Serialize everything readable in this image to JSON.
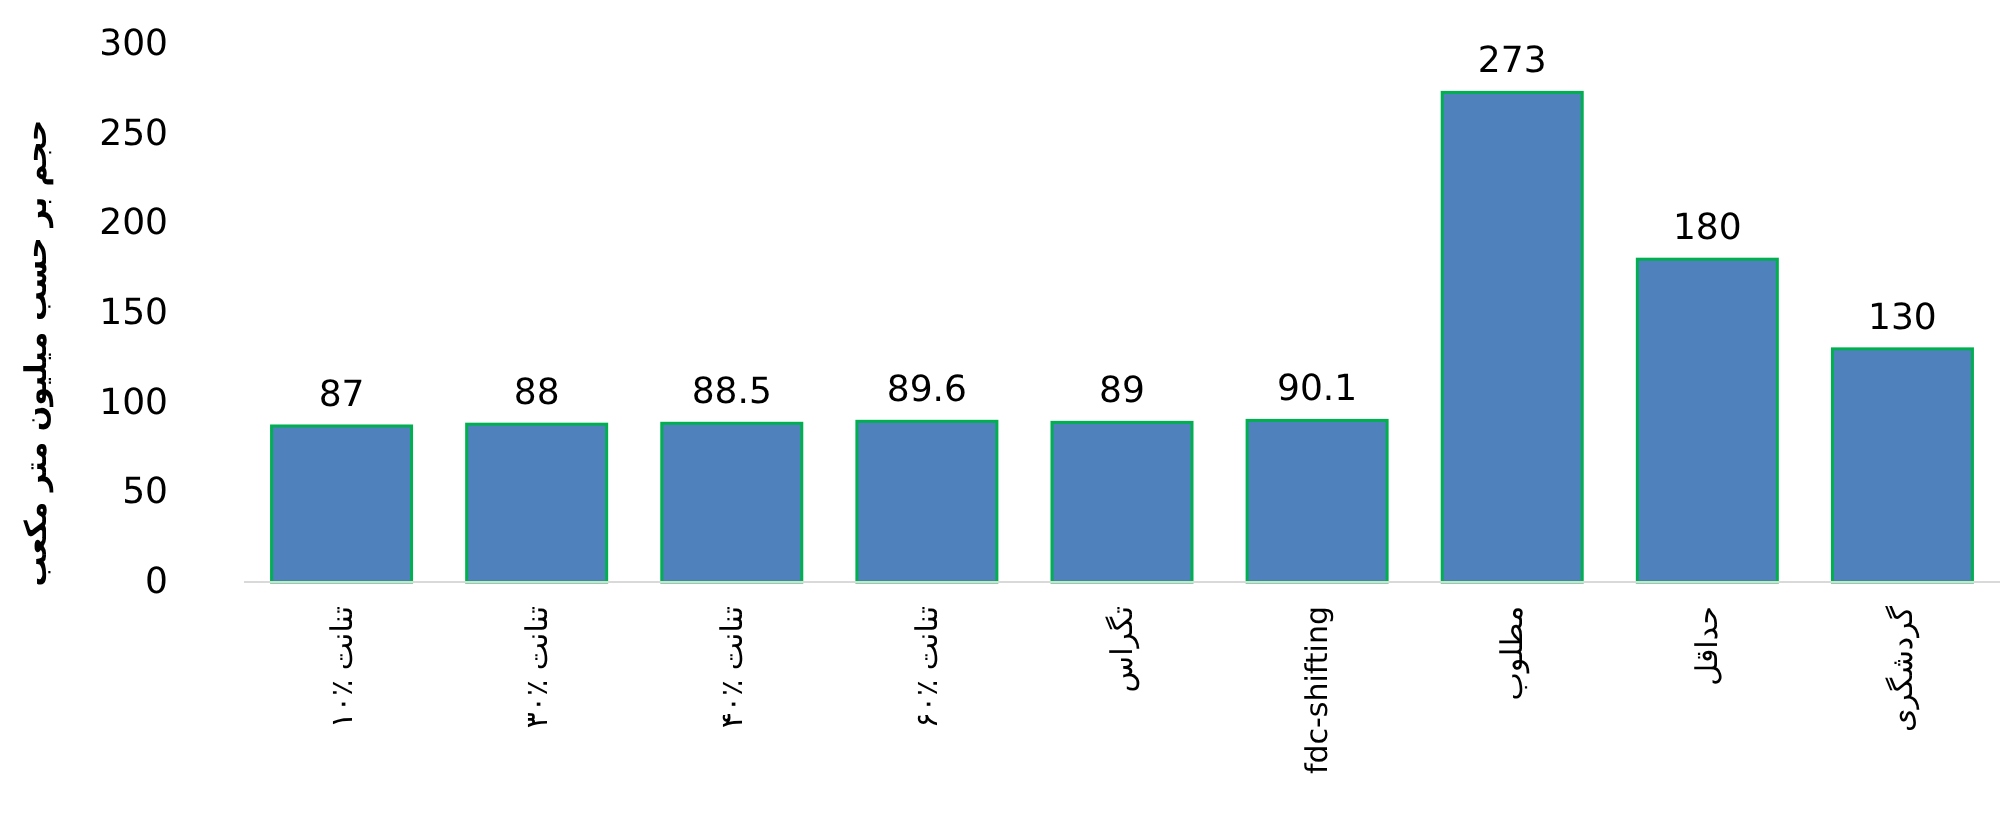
{
  "chart_data": {
    "type": "bar",
    "ylabel": "حجم بر حسب میلیون متر مکعب",
    "categories": [
      "تنانت ٪۱۰",
      "تنانت ٪۳۰",
      "تنانت ٪۴۰",
      "تنانت ٪۶۰",
      "تگراس",
      "fdc-shifting",
      "مطلوب",
      "حداقل",
      "گردشگری"
    ],
    "values": [
      87,
      88,
      88.5,
      89.6,
      89,
      90.1,
      273,
      180,
      130
    ],
    "color": "#4f81bd",
    "ylim": [
      0,
      300
    ],
    "yticks": [
      0,
      50,
      100,
      150,
      200,
      250,
      300
    ],
    "data_labels": true,
    "grid": false
  }
}
